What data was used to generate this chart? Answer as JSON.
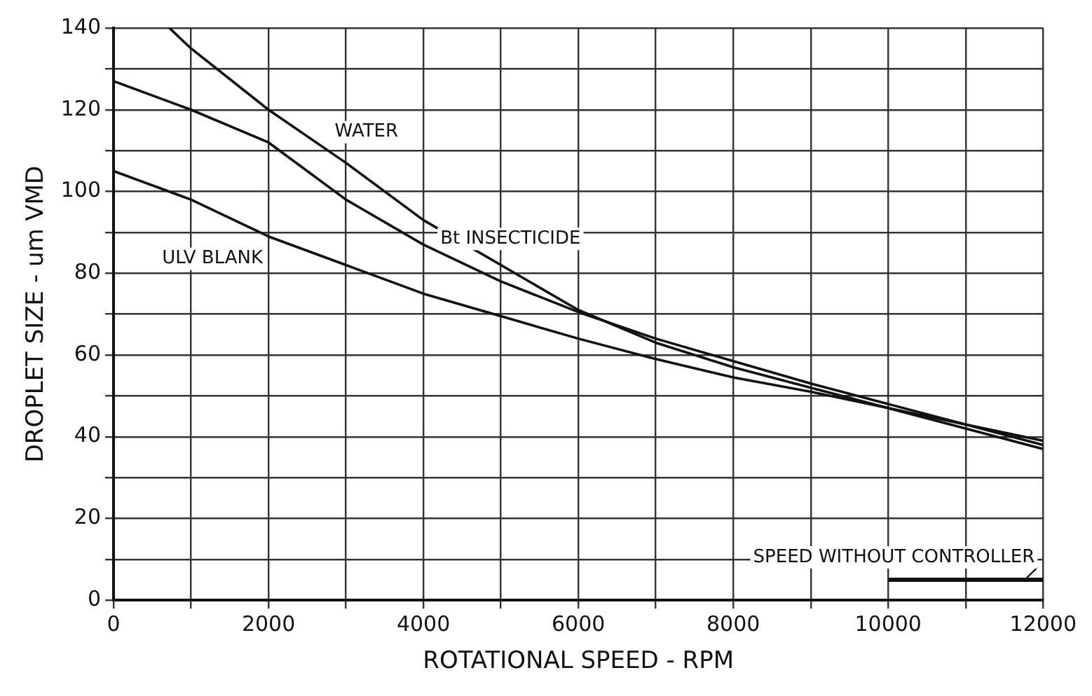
{
  "chart_data": {
    "type": "line",
    "xlabel": "ROTATIONAL SPEED - RPM",
    "ylabel": "DROPLET SIZE - um VMD",
    "xlim": [
      0,
      12000
    ],
    "xticks": [
      0,
      {
        "value": 1000,
        "label": null
      },
      2000,
      {
        "value": 3000,
        "label": null
      },
      4000,
      {
        "value": 5000,
        "label": null
      },
      6000,
      {
        "value": 7000,
        "label": null
      },
      8000,
      {
        "value": 9000,
        "label": null
      },
      10000,
      {
        "value": 11000,
        "label": null
      },
      12000
    ],
    "ylim": [
      0,
      140
    ],
    "yticks": [
      0,
      {
        "value": 10,
        "label": null
      },
      20,
      {
        "value": 30,
        "label": null
      },
      40,
      {
        "value": 50,
        "label": null
      },
      60,
      {
        "value": 70,
        "label": null
      },
      80,
      {
        "value": 90,
        "label": null
      },
      100,
      {
        "value": 110,
        "label": null
      },
      120,
      {
        "value": 130,
        "label": null
      },
      140
    ],
    "grid": true,
    "legend": false,
    "marker": "none",
    "line_style": "solid",
    "series": [
      {
        "name": "WATER",
        "color": "#111111",
        "x": [
          720,
          1000,
          2000,
          3000,
          4000,
          5000,
          6000,
          7000,
          8000,
          9000,
          10000,
          11000,
          12000
        ],
        "values": [
          140,
          135,
          120,
          107,
          93,
          82,
          71,
          63,
          57,
          52,
          47,
          42,
          37
        ]
      },
      {
        "name": "Bt INSECTICIDE",
        "color": "#111111",
        "x": [
          0,
          1000,
          2000,
          3000,
          4000,
          5000,
          6000,
          7000,
          8000,
          9000,
          10000,
          11000,
          12000
        ],
        "values": [
          127,
          120,
          112,
          98,
          87,
          78,
          70.5,
          64,
          58.5,
          53,
          48,
          43,
          38
        ]
      },
      {
        "name": "ULV BLANK",
        "color": "#111111",
        "x": [
          0,
          1000,
          2000,
          3000,
          4000,
          5000,
          6000,
          7000,
          8000,
          9000,
          10000,
          11000,
          12000
        ],
        "values": [
          105,
          98,
          89,
          82,
          75,
          69.5,
          64,
          59,
          54.5,
          51,
          47,
          43,
          39
        ]
      },
      {
        "name": "SPEED WITHOUT CONTROLLER",
        "color": "#111111",
        "x": [
          10000,
          12000
        ],
        "values": [
          5,
          5
        ]
      }
    ]
  }
}
